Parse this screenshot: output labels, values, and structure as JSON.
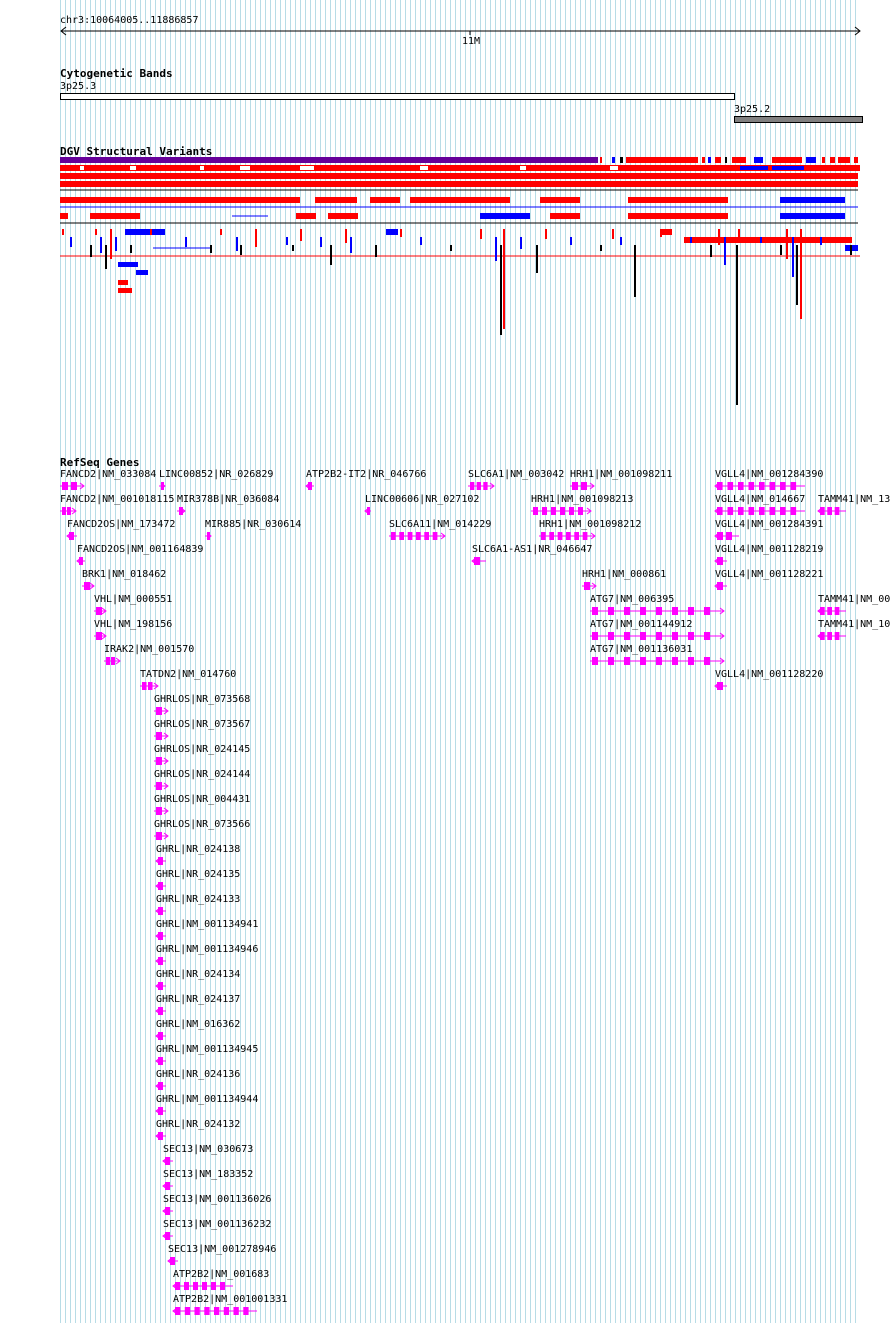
{
  "ruler": {
    "locus": "chr3:10064005..11886857",
    "tick_label": "11M"
  },
  "tracks": {
    "cytoband_title": "Cytogenetic Bands",
    "dgv_title": "DGV Structural Variants",
    "refseq_title": "RefSeq Genes"
  },
  "bands": [
    {
      "name": "3p25.3",
      "stain": "gneg"
    },
    {
      "name": "3p25.2",
      "stain": "gpos"
    }
  ],
  "colors": {
    "gene": "#ff00ff",
    "dgv_loss": "#ff0000",
    "dgv_gain": "#0000ff",
    "dgv_complex": "#000000",
    "dgv_inversion": "#660099",
    "band_gpos": "#808080",
    "grid": "#b8dce6"
  },
  "genes": [
    {
      "label": "FANCD2|NM_033084",
      "strand": "+"
    },
    {
      "label": "FANCD2|NM_001018115",
      "strand": "+"
    },
    {
      "label": "FANCD2OS|NM_173472",
      "strand": "-"
    },
    {
      "label": "FANCD2OS|NM_001164839",
      "strand": "-"
    },
    {
      "label": "BRK1|NM_018462",
      "strand": "+"
    },
    {
      "label": "VHL|NM_000551",
      "strand": "+"
    },
    {
      "label": "VHL|NM_198156",
      "strand": "+"
    },
    {
      "label": "IRAK2|NM_001570",
      "strand": "+"
    },
    {
      "label": "TATDN2|NM_014760",
      "strand": "+"
    },
    {
      "label": "GHRLOS|NR_073568",
      "strand": "+"
    },
    {
      "label": "GHRLOS|NR_073567",
      "strand": "+"
    },
    {
      "label": "GHRLOS|NR_024145",
      "strand": "+"
    },
    {
      "label": "GHRLOS|NR_024144",
      "strand": "+"
    },
    {
      "label": "GHRLOS|NR_004431",
      "strand": "+"
    },
    {
      "label": "GHRLOS|NR_073566",
      "strand": "+"
    },
    {
      "label": "GHRL|NR_024138",
      "strand": "-"
    },
    {
      "label": "GHRL|NR_024135",
      "strand": "-"
    },
    {
      "label": "GHRL|NR_024133",
      "strand": "-"
    },
    {
      "label": "GHRL|NM_001134941",
      "strand": "-"
    },
    {
      "label": "GHRL|NM_001134946",
      "strand": "-"
    },
    {
      "label": "GHRL|NR_024134",
      "strand": "-"
    },
    {
      "label": "GHRL|NR_024137",
      "strand": "-"
    },
    {
      "label": "GHRL|NM_016362",
      "strand": "-"
    },
    {
      "label": "GHRL|NM_001134945",
      "strand": "-"
    },
    {
      "label": "GHRL|NR_024136",
      "strand": "-"
    },
    {
      "label": "GHRL|NM_001134944",
      "strand": "-"
    },
    {
      "label": "GHRL|NR_024132",
      "strand": "-"
    },
    {
      "label": "SEC13|NM_030673",
      "strand": "-"
    },
    {
      "label": "SEC13|NM_183352",
      "strand": "-"
    },
    {
      "label": "SEC13|NM_001136026",
      "strand": "-"
    },
    {
      "label": "SEC13|NM_001136232",
      "strand": "-"
    },
    {
      "label": "SEC13|NM_001278946",
      "strand": "-"
    },
    {
      "label": "ATP2B2|NM_001683",
      "strand": "-"
    },
    {
      "label": "ATP2B2|NM_001001331",
      "strand": "-"
    },
    {
      "label": "LINC00852|NR_026829",
      "strand": "+"
    },
    {
      "label": "MIR378B|NR_036084",
      "strand": "+"
    },
    {
      "label": "MIR885|NR_030614",
      "strand": "+"
    },
    {
      "label": "ATP2B2-IT2|NR_046766",
      "strand": "-"
    },
    {
      "label": "LINC00606|NR_027102",
      "strand": "-"
    },
    {
      "label": "SLC6A11|NM_014229",
      "strand": "+"
    },
    {
      "label": "SLC6A1|NM_003042",
      "strand": "+"
    },
    {
      "label": "SLC6A1-AS1|NR_046647",
      "strand": "-"
    },
    {
      "label": "HRH1|NM_001098211",
      "strand": "+"
    },
    {
      "label": "HRH1|NM_001098213",
      "strand": "+"
    },
    {
      "label": "HRH1|NM_001098212",
      "strand": "+"
    },
    {
      "label": "HRH1|NM_000861",
      "strand": "+"
    },
    {
      "label": "ATG7|NM_006395",
      "strand": "+"
    },
    {
      "label": "ATG7|NM_001144912",
      "strand": "+"
    },
    {
      "label": "ATG7|NM_001136031",
      "strand": "+"
    },
    {
      "label": "VGLL4|NM_001284390",
      "strand": "-"
    },
    {
      "label": "VGLL4|NM_014667",
      "strand": "-"
    },
    {
      "label": "VGLL4|NM_001284391",
      "strand": "-"
    },
    {
      "label": "VGLL4|NM_001128219",
      "strand": "-"
    },
    {
      "label": "VGLL4|NM_001128221",
      "strand": "-"
    },
    {
      "label": "VGLL4|NM_001128220",
      "strand": "-"
    },
    {
      "label": "TAMM41|NM_13",
      "strand": "-"
    },
    {
      "label": "TAMM41|NM_00",
      "strand": "-"
    },
    {
      "label": "TAMM41|NM_10",
      "strand": "-"
    }
  ]
}
